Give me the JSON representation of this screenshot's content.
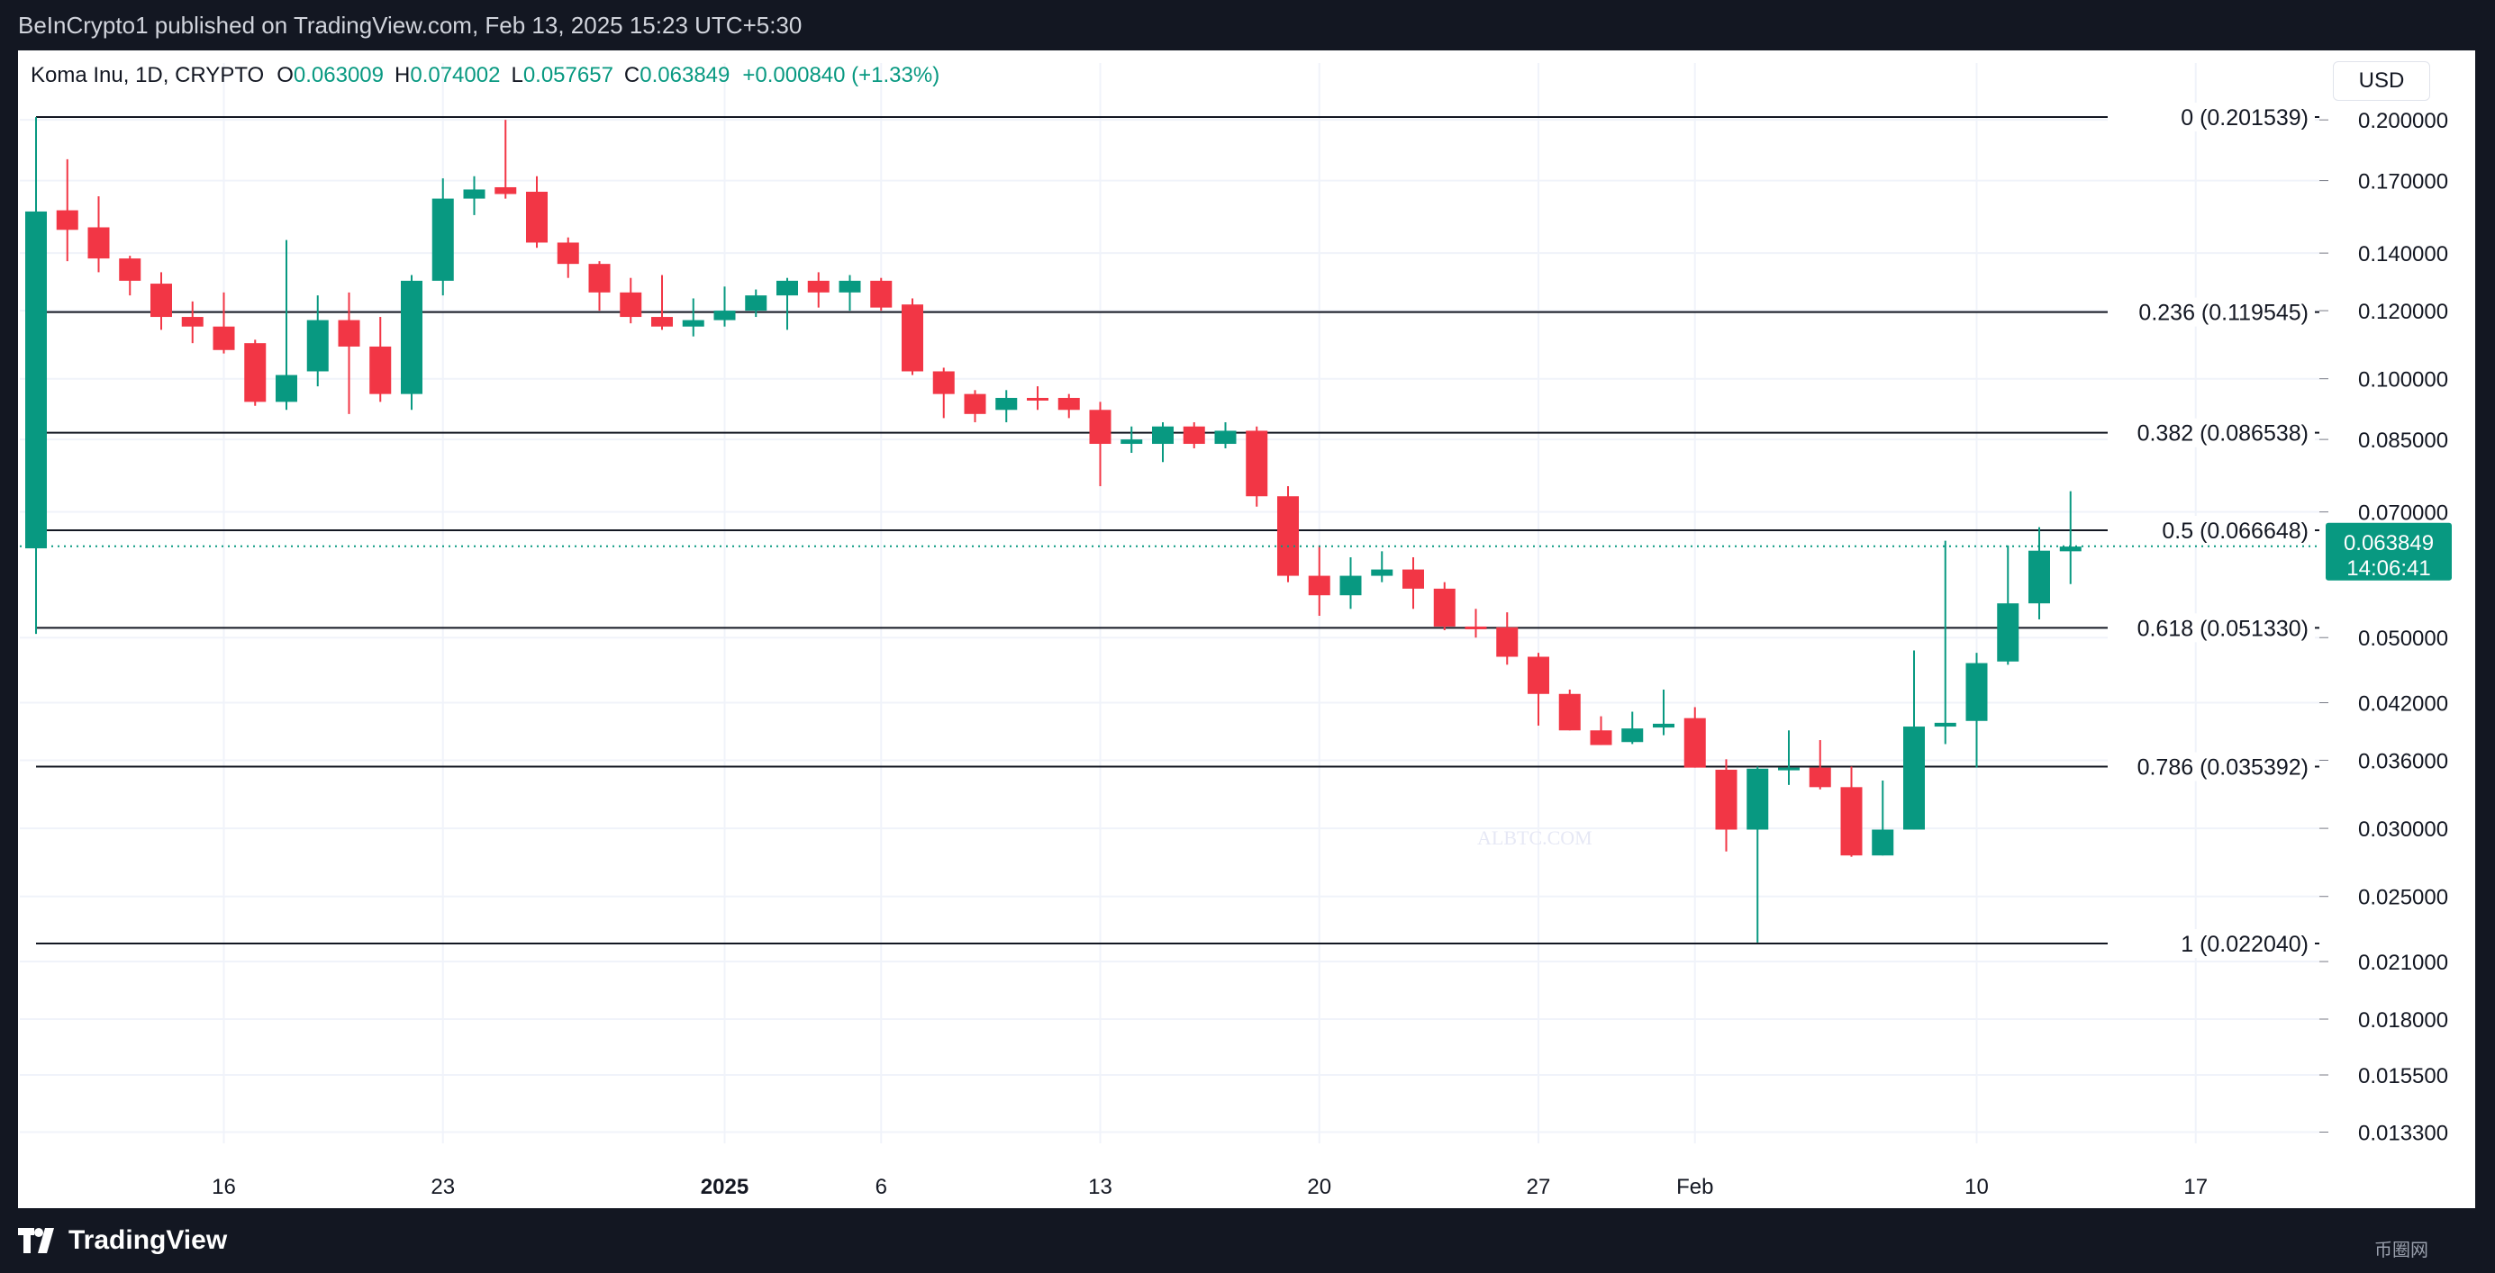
{
  "header": {
    "published_text": "BeInCrypto1 published on TradingView.com, Feb 13, 2025 15:23 UTC+5:30"
  },
  "legend": {
    "symbol": "Koma Inu, 1D, CRYPTO",
    "o_label": "O",
    "o_value": "0.063009",
    "h_label": "H",
    "h_value": "0.074002",
    "l_label": "L",
    "l_value": "0.057657",
    "c_label": "C",
    "c_value": "0.063849",
    "change": "+0.000840 (+1.33%)"
  },
  "currency_button": "USD",
  "footer": {
    "brand": "TradingView"
  },
  "watermark": "ALBTC.COM",
  "corner_text": "币圈网",
  "colors": {
    "up": "#089981",
    "down": "#f23645",
    "fib_line": "#131722",
    "grid": "#f0f3fa"
  },
  "chart_data": {
    "type": "candlestick",
    "y_scale": "log",
    "x_tick_labels": [
      {
        "label": "16",
        "index": 6
      },
      {
        "label": "23",
        "index": 13
      },
      {
        "label": "2025",
        "index": 22,
        "bold": true
      },
      {
        "label": "6",
        "index": 27
      },
      {
        "label": "13",
        "index": 34
      },
      {
        "label": "20",
        "index": 41
      },
      {
        "label": "27",
        "index": 48
      },
      {
        "label": "Feb",
        "index": 53
      },
      {
        "label": "10",
        "index": 62
      },
      {
        "label": "17",
        "index": 69
      }
    ],
    "y_tick_labels": [
      "0.200000",
      "0.170000",
      "0.140000",
      "0.120000",
      "0.100000",
      "0.085000",
      "0.070000",
      "0.050000",
      "0.042000",
      "0.036000",
      "0.030000",
      "0.025000",
      "0.021000",
      "0.018000",
      "0.015500",
      "0.013300"
    ],
    "fib_levels": [
      {
        "label": "0 (0.201539)",
        "value": 0.201539
      },
      {
        "label": "0.236 (0.119545)",
        "value": 0.119545
      },
      {
        "label": "0.382 (0.086538)",
        "value": 0.086538
      },
      {
        "label": "0.5 (0.066648)",
        "value": 0.066648
      },
      {
        "label": "0.618 (0.051330)",
        "value": 0.05133
      },
      {
        "label": "0.786 (0.035392)",
        "value": 0.035392
      },
      {
        "label": "1 (0.022040)",
        "value": 0.02204
      }
    ],
    "current_price": {
      "label": "0.063849",
      "countdown": "14:06:41",
      "value": 0.063849
    },
    "candles": [
      {
        "o": 0.0635,
        "h": 0.2015,
        "l": 0.0505,
        "c": 0.1565
      },
      {
        "o": 0.157,
        "h": 0.18,
        "l": 0.137,
        "c": 0.149
      },
      {
        "o": 0.15,
        "h": 0.163,
        "l": 0.133,
        "c": 0.138
      },
      {
        "o": 0.138,
        "h": 0.139,
        "l": 0.125,
        "c": 0.13
      },
      {
        "o": 0.129,
        "h": 0.133,
        "l": 0.114,
        "c": 0.118
      },
      {
        "o": 0.118,
        "h": 0.123,
        "l": 0.11,
        "c": 0.115
      },
      {
        "o": 0.115,
        "h": 0.126,
        "l": 0.107,
        "c": 0.108
      },
      {
        "o": 0.11,
        "h": 0.111,
        "l": 0.093,
        "c": 0.094
      },
      {
        "o": 0.094,
        "h": 0.145,
        "l": 0.092,
        "c": 0.101
      },
      {
        "o": 0.102,
        "h": 0.125,
        "l": 0.098,
        "c": 0.117
      },
      {
        "o": 0.117,
        "h": 0.126,
        "l": 0.091,
        "c": 0.109
      },
      {
        "o": 0.109,
        "h": 0.118,
        "l": 0.094,
        "c": 0.096
      },
      {
        "o": 0.096,
        "h": 0.132,
        "l": 0.092,
        "c": 0.13
      },
      {
        "o": 0.13,
        "h": 0.171,
        "l": 0.125,
        "c": 0.162
      },
      {
        "o": 0.162,
        "h": 0.172,
        "l": 0.155,
        "c": 0.166
      },
      {
        "o": 0.167,
        "h": 0.2,
        "l": 0.162,
        "c": 0.164
      },
      {
        "o": 0.165,
        "h": 0.172,
        "l": 0.142,
        "c": 0.144
      },
      {
        "o": 0.144,
        "h": 0.146,
        "l": 0.131,
        "c": 0.136
      },
      {
        "o": 0.136,
        "h": 0.137,
        "l": 0.12,
        "c": 0.126
      },
      {
        "o": 0.126,
        "h": 0.131,
        "l": 0.116,
        "c": 0.118
      },
      {
        "o": 0.118,
        "h": 0.132,
        "l": 0.114,
        "c": 0.115
      },
      {
        "o": 0.115,
        "h": 0.124,
        "l": 0.112,
        "c": 0.117
      },
      {
        "o": 0.117,
        "h": 0.128,
        "l": 0.115,
        "c": 0.12
      },
      {
        "o": 0.12,
        "h": 0.127,
        "l": 0.118,
        "c": 0.125
      },
      {
        "o": 0.125,
        "h": 0.131,
        "l": 0.114,
        "c": 0.13
      },
      {
        "o": 0.13,
        "h": 0.133,
        "l": 0.121,
        "c": 0.126
      },
      {
        "o": 0.126,
        "h": 0.132,
        "l": 0.12,
        "c": 0.13
      },
      {
        "o": 0.13,
        "h": 0.131,
        "l": 0.12,
        "c": 0.121
      },
      {
        "o": 0.122,
        "h": 0.124,
        "l": 0.101,
        "c": 0.102
      },
      {
        "o": 0.102,
        "h": 0.103,
        "l": 0.09,
        "c": 0.096
      },
      {
        "o": 0.096,
        "h": 0.097,
        "l": 0.089,
        "c": 0.091
      },
      {
        "o": 0.092,
        "h": 0.097,
        "l": 0.089,
        "c": 0.095
      },
      {
        "o": 0.095,
        "h": 0.098,
        "l": 0.092,
        "c": 0.0945
      },
      {
        "o": 0.095,
        "h": 0.096,
        "l": 0.09,
        "c": 0.092
      },
      {
        "o": 0.092,
        "h": 0.094,
        "l": 0.075,
        "c": 0.084
      },
      {
        "o": 0.084,
        "h": 0.088,
        "l": 0.082,
        "c": 0.085
      },
      {
        "o": 0.084,
        "h": 0.089,
        "l": 0.08,
        "c": 0.088
      },
      {
        "o": 0.088,
        "h": 0.089,
        "l": 0.083,
        "c": 0.084
      },
      {
        "o": 0.084,
        "h": 0.089,
        "l": 0.083,
        "c": 0.087
      },
      {
        "o": 0.087,
        "h": 0.088,
        "l": 0.071,
        "c": 0.073
      },
      {
        "o": 0.073,
        "h": 0.075,
        "l": 0.058,
        "c": 0.059
      },
      {
        "o": 0.059,
        "h": 0.064,
        "l": 0.053,
        "c": 0.056
      },
      {
        "o": 0.056,
        "h": 0.062,
        "l": 0.054,
        "c": 0.059
      },
      {
        "o": 0.059,
        "h": 0.063,
        "l": 0.058,
        "c": 0.06
      },
      {
        "o": 0.06,
        "h": 0.062,
        "l": 0.054,
        "c": 0.057
      },
      {
        "o": 0.057,
        "h": 0.058,
        "l": 0.051,
        "c": 0.0515
      },
      {
        "o": 0.0515,
        "h": 0.054,
        "l": 0.05,
        "c": 0.0512
      },
      {
        "o": 0.0514,
        "h": 0.0535,
        "l": 0.0465,
        "c": 0.0475
      },
      {
        "o": 0.0475,
        "h": 0.048,
        "l": 0.0395,
        "c": 0.043
      },
      {
        "o": 0.043,
        "h": 0.0435,
        "l": 0.039,
        "c": 0.039
      },
      {
        "o": 0.039,
        "h": 0.0405,
        "l": 0.0375,
        "c": 0.0375
      },
      {
        "o": 0.0378,
        "h": 0.041,
        "l": 0.0376,
        "c": 0.0392
      },
      {
        "o": 0.0393,
        "h": 0.0435,
        "l": 0.0385,
        "c": 0.0397
      },
      {
        "o": 0.0403,
        "h": 0.0415,
        "l": 0.0353,
        "c": 0.0353
      },
      {
        "o": 0.0351,
        "h": 0.0361,
        "l": 0.0282,
        "c": 0.0299
      },
      {
        "o": 0.0299,
        "h": 0.0354,
        "l": 0.0221,
        "c": 0.0352
      },
      {
        "o": 0.0351,
        "h": 0.039,
        "l": 0.0337,
        "c": 0.0353
      },
      {
        "o": 0.0353,
        "h": 0.038,
        "l": 0.0333,
        "c": 0.0335
      },
      {
        "o": 0.0335,
        "h": 0.0354,
        "l": 0.0278,
        "c": 0.0279
      },
      {
        "o": 0.0279,
        "h": 0.0341,
        "l": 0.0279,
        "c": 0.0299
      },
      {
        "o": 0.0299,
        "h": 0.0483,
        "l": 0.0299,
        "c": 0.0394
      },
      {
        "o": 0.0394,
        "h": 0.0648,
        "l": 0.0376,
        "c": 0.0398
      },
      {
        "o": 0.04,
        "h": 0.048,
        "l": 0.0353,
        "c": 0.0467
      },
      {
        "o": 0.0469,
        "h": 0.064,
        "l": 0.0465,
        "c": 0.0548
      },
      {
        "o": 0.0548,
        "h": 0.0672,
        "l": 0.0525,
        "c": 0.0631
      },
      {
        "o": 0.063,
        "h": 0.074,
        "l": 0.0577,
        "c": 0.0638
      }
    ]
  }
}
